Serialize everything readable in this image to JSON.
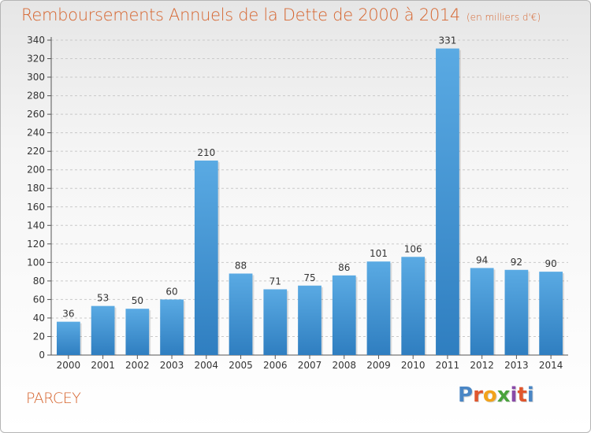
{
  "header": {
    "title": "Remboursements Annuels de la Dette de 2000 à 2014",
    "unit": "(en milliers d'€)"
  },
  "footer": {
    "commune": "PARCEY",
    "logo": {
      "letters": [
        "P",
        "r",
        "o",
        "x",
        "i",
        "t",
        "i"
      ],
      "colors": [
        "#4a86c5",
        "#e0562d",
        "#f2a31b",
        "#4aa33d",
        "#8a4aa8",
        "#e0562d",
        "#4a86c5"
      ]
    }
  },
  "colors": {
    "bar": "#5aaae3",
    "bar_dark": "#2f7ec0",
    "grid": "#c9c9c9",
    "axis_text": "#333333",
    "title": "#d6652f"
  },
  "chart_data": {
    "type": "bar",
    "categories": [
      "2000",
      "2001",
      "2002",
      "2003",
      "2004",
      "2005",
      "2006",
      "2007",
      "2008",
      "2009",
      "2010",
      "2011",
      "2012",
      "2013",
      "2014"
    ],
    "values": [
      36,
      53,
      50,
      60,
      210,
      88,
      71,
      75,
      86,
      101,
      106,
      331,
      94,
      92,
      90
    ],
    "title": "Remboursements Annuels de la Dette de 2000 à 2014",
    "ylim": [
      0,
      340
    ],
    "yticks": [
      0,
      20,
      40,
      60,
      80,
      100,
      120,
      140,
      160,
      180,
      200,
      220,
      240,
      260,
      280,
      300,
      320,
      340
    ],
    "grid": true
  }
}
